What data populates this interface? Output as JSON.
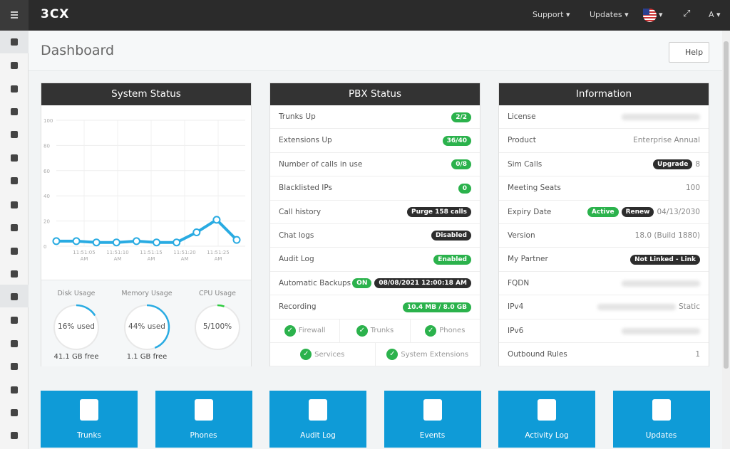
{
  "topbar": {
    "logo": "3CX",
    "menu": [
      "Support",
      "Updates",
      "A"
    ]
  },
  "page": {
    "title": "Dashboard",
    "help": "Help"
  },
  "system_status": {
    "title": "System Status",
    "chart": {
      "ylim": [
        0,
        100
      ],
      "yticks": [
        0,
        20,
        40,
        60,
        80,
        100
      ],
      "xtick_labels": [
        "11:51:05 AM",
        "11:51:10 AM",
        "11:51:15 AM",
        "11:51:20 AM",
        "11:51:25 AM"
      ],
      "values": [
        4,
        4,
        3,
        3,
        4,
        3,
        3,
        11,
        21,
        5
      ],
      "color": "#29abe2"
    },
    "gauges": [
      {
        "label": "Disk Usage",
        "text": "16% used",
        "value": 16,
        "sub": "41.1 GB free",
        "color": "#29abe2"
      },
      {
        "label": "Memory Usage",
        "text": "44% used",
        "value": 44,
        "sub": "1.1 GB free",
        "color": "#29abe2"
      },
      {
        "label": "CPU Usage",
        "text": "5/100%",
        "value": 5,
        "color": "#2ecc40"
      }
    ]
  },
  "pbx_status": {
    "title": "PBX Status",
    "rows": [
      {
        "label": "Trunks Up",
        "badges": [
          {
            "text": "2/2",
            "style": "green"
          }
        ]
      },
      {
        "label": "Extensions Up",
        "badges": [
          {
            "text": "36/40",
            "style": "green"
          }
        ]
      },
      {
        "label": "Number of calls in use",
        "badges": [
          {
            "text": "0/8",
            "style": "green"
          }
        ]
      },
      {
        "label": "Blacklisted IPs",
        "badges": [
          {
            "text": "0",
            "style": "green"
          }
        ]
      },
      {
        "label": "Call history",
        "badges": [
          {
            "text": "Purge 158 calls",
            "style": "dark"
          }
        ]
      },
      {
        "label": "Chat logs",
        "badges": [
          {
            "text": "Disabled",
            "style": "dark"
          }
        ]
      },
      {
        "label": "Audit Log",
        "badges": [
          {
            "text": "Enabled",
            "style": "green"
          }
        ]
      },
      {
        "label": "Automatic Backups",
        "badges": [
          {
            "text": "ON",
            "style": "green"
          },
          {
            "text": "08/08/2021 12:00:18 AM",
            "style": "dark"
          }
        ]
      },
      {
        "label": "Recording",
        "badges": [
          {
            "text": "10.4 MB / 8.0 GB",
            "style": "green"
          }
        ]
      }
    ],
    "checks": [
      [
        "Firewall",
        "Trunks",
        "Phones"
      ],
      [
        "Services",
        "System Extensions"
      ]
    ]
  },
  "information": {
    "title": "Information",
    "rows": [
      {
        "label": "License",
        "blurred": true
      },
      {
        "label": "Product",
        "value": "Enterprise Annual"
      },
      {
        "label": "Sim Calls",
        "badges": [
          {
            "text": "Upgrade",
            "style": "dark"
          }
        ],
        "value": "8"
      },
      {
        "label": "Meeting Seats",
        "value": "100"
      },
      {
        "label": "Expiry Date",
        "badges": [
          {
            "text": "Active",
            "style": "green"
          },
          {
            "text": "Renew",
            "style": "dark"
          }
        ],
        "value": "04/13/2030"
      },
      {
        "label": "Version",
        "value": "18.0 (Build 1880)"
      },
      {
        "label": "My Partner",
        "badges": [
          {
            "text": "Not Linked - Link",
            "style": "dark"
          }
        ]
      },
      {
        "label": "FQDN",
        "blurred": true
      },
      {
        "label": "IPv4",
        "blurred": true,
        "value": "Static"
      },
      {
        "label": "IPv6",
        "blurred": true
      },
      {
        "label": "Outbound Rules",
        "value": "1"
      }
    ]
  },
  "tiles": [
    "Trunks",
    "Phones",
    "Audit Log",
    "Events",
    "Activity Log",
    "Updates"
  ]
}
